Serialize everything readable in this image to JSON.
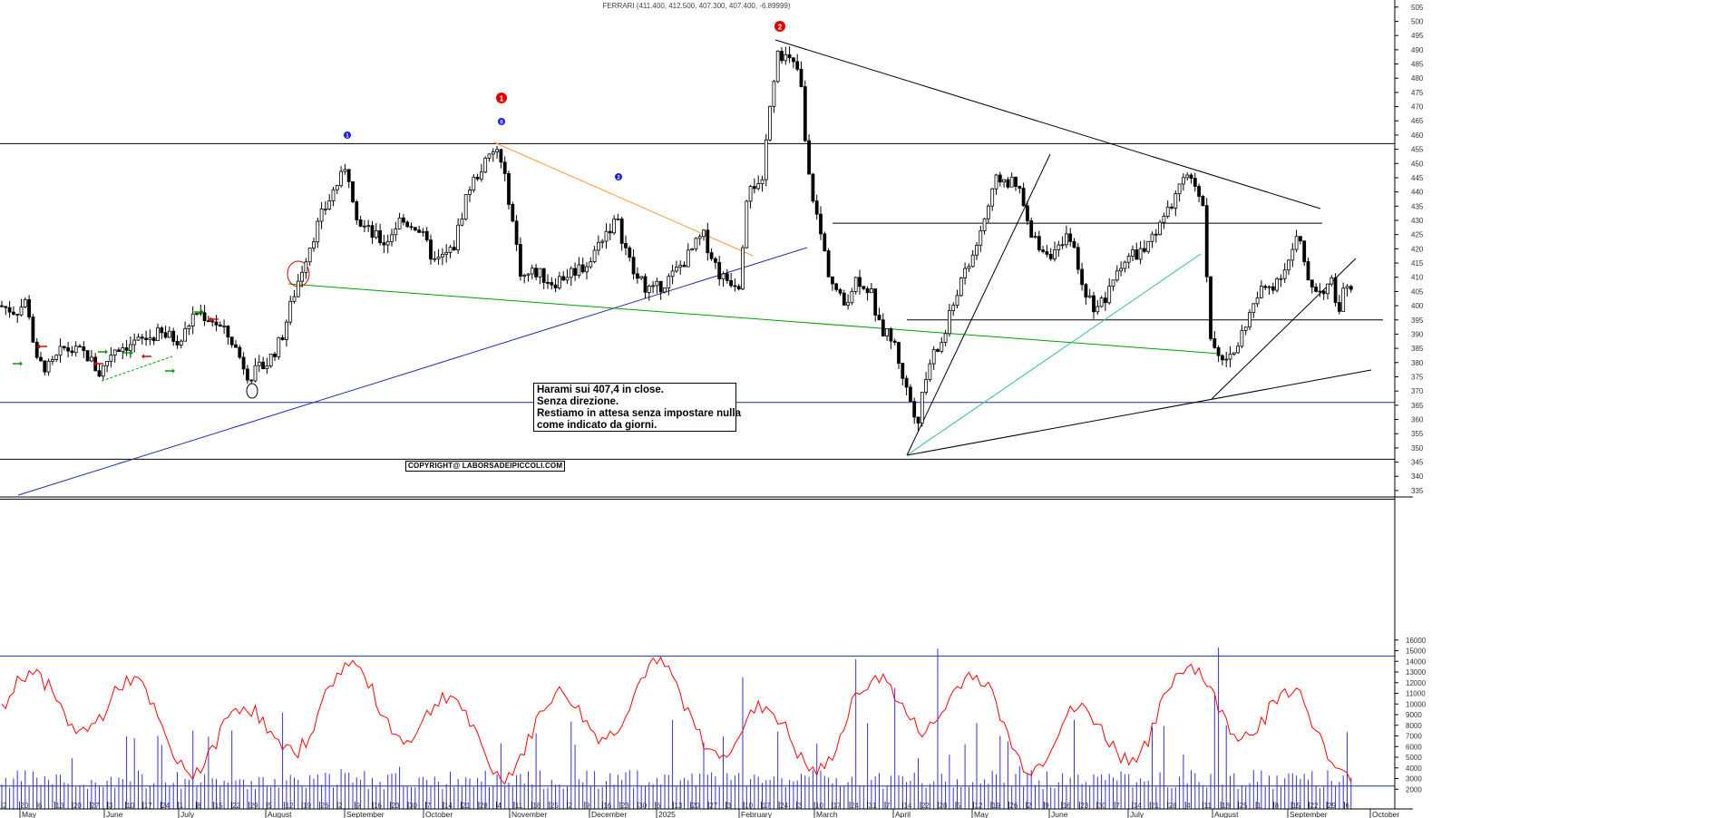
{
  "title": "FERRARI (411.400, 412.500, 407.300, 407.400, -6.89999)",
  "note": {
    "lines": [
      "Harami sui 407,4 in close.",
      "Senza direzione.",
      "Restiamo in attesa senza impostare nulla",
      "come indicato da giorni."
    ]
  },
  "copyright": "COPYRIGHT@ LABORSADEIPICCOLI.COM",
  "colors": {
    "candle": "#000000",
    "volume": "#3333cc",
    "oscillator": "#ff0000",
    "horizontal_blue": "#1f2fa8",
    "trend_blue": "#1f2fa8",
    "trend_orange": "#ff9933",
    "trend_green": "#00a000",
    "trend_teal": "#2fbf8f",
    "marker_red": "#dd0000",
    "marker_blue": "#1a1ae6"
  },
  "chart_data": [
    {
      "type": "candlestick",
      "title": "FERRARI (411.400, 412.500, 407.300, 407.400, -6.89999)",
      "ylim": [
        330,
        505
      ],
      "y_ticks": [
        "335",
        "340",
        "345",
        "350",
        "355",
        "360",
        "365",
        "370",
        "375",
        "380",
        "385",
        "390",
        "395",
        "400",
        "405",
        "410",
        "415",
        "420",
        "425",
        "430",
        "435",
        "440",
        "445",
        "450",
        "455",
        "460",
        "465",
        "470",
        "475",
        "480",
        "485",
        "490",
        "495",
        "500",
        "505"
      ],
      "horizontal_levels": [
        457,
        429,
        395,
        366,
        346,
        332
      ],
      "monthly_close_approx": {
        "May 2024": 382,
        "June": 410,
        "July": 445,
        "August": 382,
        "September": 407,
        "October": 452,
        "November": 412,
        "December": 420,
        "January 2025": 410,
        "February": 482,
        "March": 405,
        "April": 372,
        "May": 440
      },
      "key_points": [
        {
          "label": "high",
          "date": "Feb 2025",
          "value": 493
        },
        {
          "label": "low",
          "date": "Apr 2025",
          "value": 346
        },
        {
          "label": "last close",
          "date": "Sep 2025",
          "value": 407.4
        }
      ],
      "markers": [
        {
          "glyph": "❶",
          "color": "red"
        },
        {
          "glyph": "❷",
          "color": "red"
        },
        {
          "glyph": "❶",
          "color": "blue"
        },
        {
          "glyph": "⓿",
          "color": "blue"
        },
        {
          "glyph": "❷",
          "color": "blue"
        }
      ]
    },
    {
      "type": "bar+line",
      "ylim": [
        1000,
        16500
      ],
      "y_ticks": [
        "2000",
        "3000",
        "4000",
        "5000",
        "6000",
        "7000",
        "8000",
        "9000",
        "10000",
        "11000",
        "12000",
        "13000",
        "14000",
        "15000",
        "16000"
      ],
      "horizontal_levels": [
        14500,
        2300
      ],
      "series": [
        {
          "type": "bar",
          "description_key": "volume"
        },
        {
          "type": "line",
          "description_key": "oscillator"
        }
      ]
    }
  ],
  "x_axis": {
    "day_ticks": [
      "2",
      "20",
      "6",
      "13",
      "20",
      "27",
      "3",
      "10",
      "17",
      "24",
      "1",
      "8",
      "15",
      "22",
      "29",
      "5",
      "12",
      "19",
      "26",
      "2",
      "9",
      "16",
      "23",
      "30",
      "7",
      "14",
      "21",
      "28",
      "4",
      "11",
      "18",
      "25",
      "2",
      "9",
      "16",
      "23",
      "30",
      "6",
      "13",
      "20",
      "27",
      "3",
      "10",
      "17",
      "24",
      "3",
      "10",
      "17",
      "24",
      "31",
      "7",
      "14",
      "22",
      "28",
      "5",
      "12",
      "19",
      "26",
      "2",
      "9",
      "16",
      "23",
      "30",
      "7",
      "14",
      "21",
      "28",
      "4",
      "11",
      "18",
      "25",
      "1",
      "8",
      "15",
      "22",
      "29",
      "6"
    ],
    "months": [
      "May",
      "June",
      "July",
      "August",
      "September",
      "October",
      "November",
      "December",
      "2025",
      "February",
      "March",
      "April",
      "May",
      "June",
      "July",
      "August",
      "September",
      "October"
    ]
  }
}
